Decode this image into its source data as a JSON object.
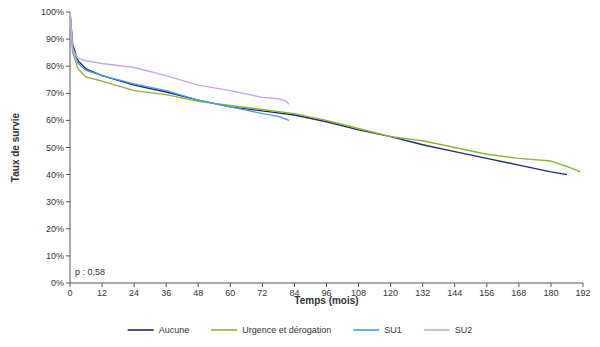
{
  "chart_data": {
    "type": "line",
    "x_label": "Temps (mois)",
    "y_label": "Taux de survie",
    "annotation": "p : 0,58",
    "xlim": [
      0,
      192
    ],
    "xticks": [
      0,
      12,
      24,
      36,
      48,
      60,
      72,
      84,
      96,
      108,
      120,
      132,
      144,
      156,
      168,
      180,
      192
    ],
    "ylim": [
      0,
      100
    ],
    "yticks": [
      {
        "value": 0,
        "label": "0%"
      },
      {
        "value": 10,
        "label": "10%"
      },
      {
        "value": 20,
        "label": "20%"
      },
      {
        "value": 30,
        "label": "30%"
      },
      {
        "value": 40,
        "label": "40%"
      },
      {
        "value": 50,
        "label": "50%"
      },
      {
        "value": 60,
        "label": "60%"
      },
      {
        "value": 70,
        "label": "70%"
      },
      {
        "value": 80,
        "label": "80%"
      },
      {
        "value": 90,
        "label": "90%"
      },
      {
        "value": 100,
        "label": "100%"
      }
    ],
    "grid": false,
    "legend": "bottom",
    "series": [
      {
        "name": "Aucune",
        "color": "#232a6b",
        "x": [
          0,
          1,
          3,
          6,
          12,
          24,
          36,
          48,
          60,
          72,
          84,
          96,
          108,
          120,
          132,
          144,
          156,
          168,
          180,
          186
        ],
        "values": [
          100,
          88,
          82,
          79,
          76.5,
          73,
          70.5,
          67.5,
          65,
          63.5,
          62,
          59.5,
          56.5,
          54,
          51,
          48.5,
          46,
          43.5,
          41,
          40
        ]
      },
      {
        "name": "Urgence et dérogation",
        "color": "#8db33b",
        "x": [
          0,
          1,
          3,
          6,
          12,
          24,
          36,
          48,
          60,
          72,
          84,
          96,
          108,
          120,
          132,
          144,
          156,
          168,
          180,
          186,
          191
        ],
        "values": [
          100,
          85,
          79,
          76,
          74.5,
          71,
          69.5,
          67,
          65.5,
          64,
          62.5,
          60,
          57,
          54,
          52.5,
          50,
          47.5,
          46,
          45,
          43,
          41
        ]
      },
      {
        "name": "SU1",
        "color": "#4a9edb",
        "x": [
          0,
          1,
          3,
          6,
          12,
          24,
          36,
          48,
          60,
          72,
          78,
          82
        ],
        "values": [
          100,
          87,
          81,
          78.5,
          76.5,
          73.5,
          71,
          67.5,
          65,
          62.5,
          61.5,
          60
        ]
      },
      {
        "name": "SU2",
        "color": "#c9a6e0",
        "x": [
          0,
          1,
          3,
          6,
          12,
          24,
          36,
          48,
          60,
          72,
          78,
          81,
          82
        ],
        "values": [
          100,
          86,
          83,
          82,
          81,
          79.5,
          76.5,
          73,
          71,
          68.5,
          68,
          67,
          66
        ]
      }
    ]
  }
}
